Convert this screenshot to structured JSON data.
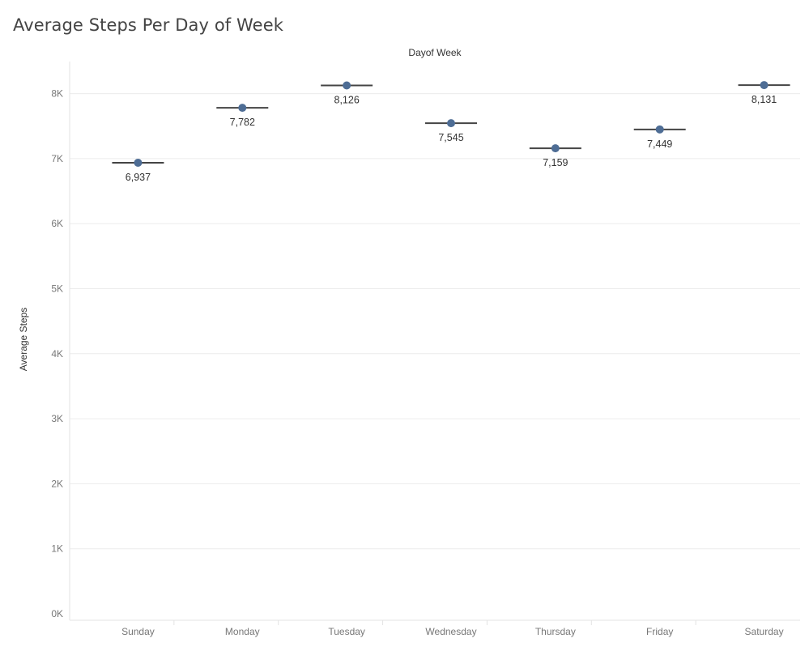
{
  "chart_data": {
    "type": "scatter",
    "title": "Average Steps Per Day of Week",
    "column_header": "Dayof Week",
    "ylabel": "Average Steps",
    "categories": [
      "Sunday",
      "Monday",
      "Tuesday",
      "Wednesday",
      "Thursday",
      "Friday",
      "Saturday"
    ],
    "values": [
      6937,
      7782,
      8126,
      7545,
      7159,
      7449,
      8131
    ],
    "value_labels": [
      "6,937",
      "7,782",
      "8,126",
      "7,545",
      "7,159",
      "7,449",
      "8,131"
    ],
    "ylim": [
      0,
      8500
    ],
    "yticks": [
      0,
      1000,
      2000,
      3000,
      4000,
      5000,
      6000,
      7000,
      8000
    ],
    "ytick_labels": [
      "0K",
      "1K",
      "2K",
      "3K",
      "4K",
      "5K",
      "6K",
      "7K",
      "8K"
    ],
    "grid": true,
    "colors": {
      "point": "#4e6d95",
      "reference_line": "#444444",
      "gridline": "#ececec",
      "axis": "#e3e3e3"
    }
  }
}
